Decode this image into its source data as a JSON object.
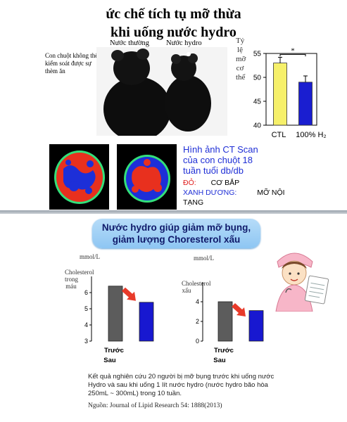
{
  "header": {
    "title_line1": "ức chế tích tụ mỡ thừa",
    "title_line2": "khi uống nước hydro"
  },
  "mice": {
    "label_normal": "Nước thường",
    "label_hydro": "Nước hydro",
    "note": "Con chuột không thể kiểm soát được sự thèm ăn"
  },
  "ct": {
    "caption_line1": "Hình ảnh CT Scan",
    "caption_line2": "của con chuột 18",
    "caption_line3": "tuần tuổi db/db",
    "legend_red_key": "ĐỎ:",
    "legend_red_value": "CƠ BẮP",
    "legend_blue_key": "XANH DƯƠNG:",
    "legend_blue_value": "MỠ NỘI",
    "legend_blue_value2": "TẠNG"
  },
  "banner": {
    "line1": "Nước hydro giúp giảm mỡ bụng,",
    "line2": "giảm lượng Choresterol xấu"
  },
  "footer": {
    "line1": "Kết quả nghiên cứu 20 người bị mỡ bụng trước khi uống nước",
    "line2": "Hydro và sau khi uống 1 lít nước hydro (nước hydro bão hòa",
    "line3": "250mL ~ 300mL) trong 10 tuần.",
    "source": "Nguồn: Journal of Lipid Research 54: 1888(2013)"
  },
  "colors": {
    "ctl_bar": "#f6f06a",
    "hydro_bar": "#1a1ed0",
    "before_bar": "#5c5c5c",
    "after_bar": "#1818d0",
    "arrow": "#e83a2a",
    "ct_red": "#e8301e",
    "ct_blue": "#1d2fd8",
    "ct_green": "#33e07a"
  },
  "chart_data": [
    {
      "type": "bar",
      "ylabel": "Tỷ lệ mỡ cơ thể",
      "categories": [
        "CTL",
        "100% H₂"
      ],
      "values": [
        53,
        49
      ],
      "errors": [
        1.2,
        1.3
      ],
      "ylim": [
        40,
        55
      ],
      "yticks": [
        40,
        45,
        50,
        55
      ],
      "significance": "*"
    },
    {
      "type": "bar",
      "ylabel": "Cholesterol trong máu",
      "units": "mmol/L",
      "categories": [
        "Trước",
        "Sau"
      ],
      "values": [
        6.4,
        5.4
      ],
      "ylim": [
        3,
        7
      ],
      "yticks": [
        3,
        4,
        5,
        6
      ]
    },
    {
      "type": "bar",
      "ylabel": "Cholesterol xấu",
      "units": "mmol/L",
      "categories": [
        "Trước",
        "Sau"
      ],
      "values": [
        4.0,
        3.1
      ],
      "ylim": [
        0,
        6
      ],
      "yticks": [
        0,
        2,
        4
      ]
    }
  ]
}
